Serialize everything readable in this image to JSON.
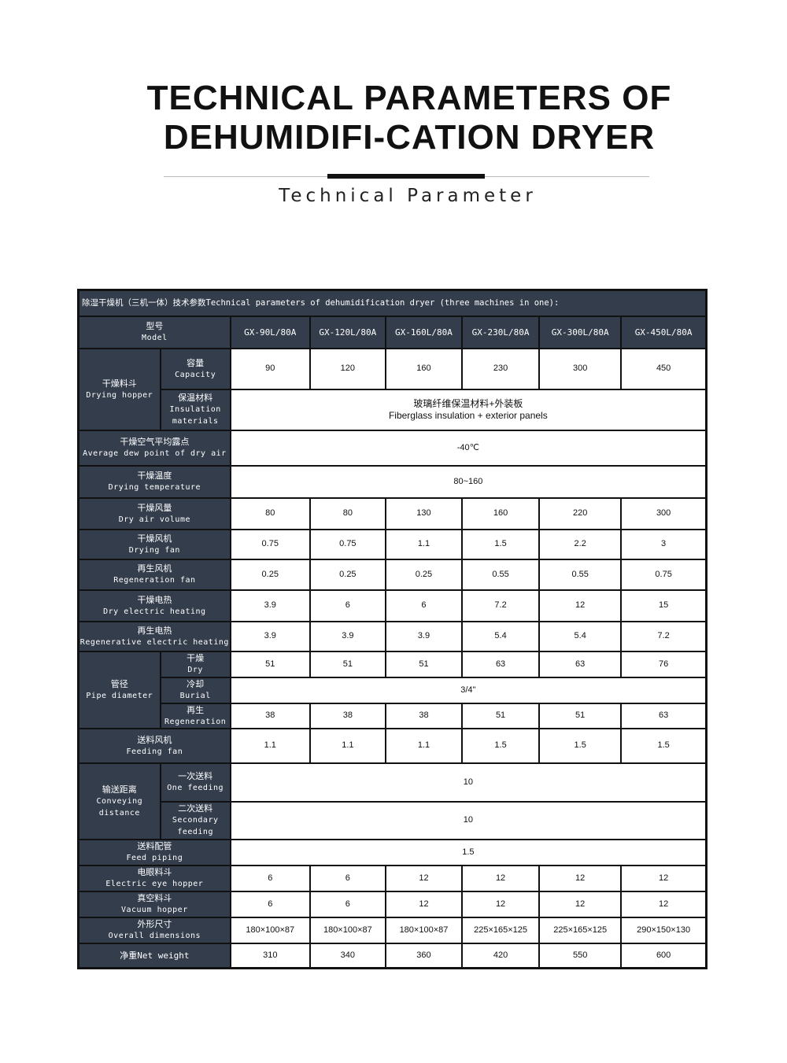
{
  "header": {
    "title": "TECHNICAL PARAMETERS OF DEHUMIDIFI-CATION DRYER",
    "subtitle": "Technical Parameter"
  },
  "table": {
    "caption": "除湿干燥机（三机一体）技术参数Technical parameters of dehumidification dryer (three machines in one):",
    "model": {
      "zh": "型号",
      "en": "Model",
      "values": [
        "GX-90L/80A",
        "GX-120L/80A",
        "GX-160L/80A",
        "GX-230L/80A",
        "GX-300L/80A",
        "GX-450L/80A"
      ]
    },
    "hopper": {
      "zh": "干燥料斗",
      "en": "Drying hopper",
      "capacity": {
        "zh": "容量",
        "en": "Capacity",
        "values": [
          "90",
          "120",
          "160",
          "230",
          "300",
          "450"
        ]
      },
      "insulation": {
        "zh": "保温材料",
        "en1": "Insulation",
        "en2": "materials",
        "value_zh": "玻璃纤维保温材料+外装板",
        "value_en": "Fiberglass insulation + exterior panels"
      }
    },
    "dew": {
      "zh": "干燥空气平均露点",
      "en": "Average dew point of dry air",
      "value": "-40℃"
    },
    "temp": {
      "zh": "干燥温度",
      "en": "Drying temperature",
      "value": "80~160"
    },
    "rows1": [
      {
        "zh": "干燥风量",
        "en": "Dry air volume",
        "values": [
          "80",
          "80",
          "130",
          "160",
          "220",
          "300"
        ]
      },
      {
        "zh": "干燥风机",
        "en": "Drying fan",
        "values": [
          "0.75",
          "0.75",
          "1.1",
          "1.5",
          "2.2",
          "3"
        ]
      },
      {
        "zh": "再生风机",
        "en": "Regeneration fan",
        "values": [
          "0.25",
          "0.25",
          "0.25",
          "0.55",
          "0.55",
          "0.75"
        ]
      },
      {
        "zh": "干燥电热",
        "en": "Dry electric heating",
        "values": [
          "3.9",
          "6",
          "6",
          "7.2",
          "12",
          "15"
        ]
      },
      {
        "zh": "再生电热",
        "en": "Regenerative electric heating",
        "values": [
          "3.9",
          "3.9",
          "3.9",
          "5.4",
          "5.4",
          "7.2"
        ]
      }
    ],
    "pipe": {
      "zh": "管径",
      "en": "Pipe diameter",
      "dry": {
        "zh": "干燥",
        "en": "Dry",
        "values": [
          "51",
          "51",
          "51",
          "63",
          "63",
          "76"
        ]
      },
      "burial": {
        "zh": "冷却",
        "en": "Burial",
        "value": "3/4\""
      },
      "regen": {
        "zh": "再生",
        "en": "Regeneration",
        "values": [
          "38",
          "38",
          "38",
          "51",
          "51",
          "63"
        ]
      }
    },
    "feeding_fan": {
      "zh": "送料风机",
      "en": "Feeding fan",
      "values": [
        "1.1",
        "1.1",
        "1.1",
        "1.5",
        "1.5",
        "1.5"
      ]
    },
    "conveying": {
      "zh": "输送距离",
      "en1": "Conveying",
      "en2": "distance",
      "one": {
        "zh": "一次送料",
        "en": "One feeding",
        "value": "10"
      },
      "second": {
        "zh": "二次送料",
        "en1": "Secondary",
        "en2": "feeding",
        "value": "10"
      }
    },
    "feed_piping": {
      "zh": "送料配管",
      "en": "Feed piping",
      "value": "1.5"
    },
    "rows2": [
      {
        "zh": "电眼料斗",
        "en": "Electric eye hopper",
        "values": [
          "6",
          "6",
          "12",
          "12",
          "12",
          "12"
        ]
      },
      {
        "zh": "真空料斗",
        "en": "Vacuum hopper",
        "values": [
          "6",
          "6",
          "12",
          "12",
          "12",
          "12"
        ]
      },
      {
        "zh": "外形尺寸",
        "en": "Overall dimensions",
        "values": [
          "180×100×87",
          "180×100×87",
          "180×100×87",
          "225×165×125",
          "225×165×125",
          "290×150×130"
        ]
      }
    ],
    "weight": {
      "label": "净重Net weight",
      "values": [
        "310",
        "340",
        "360",
        "420",
        "550",
        "600"
      ]
    }
  },
  "colors": {
    "header_bg": "#333d4c",
    "border": "#111111"
  }
}
